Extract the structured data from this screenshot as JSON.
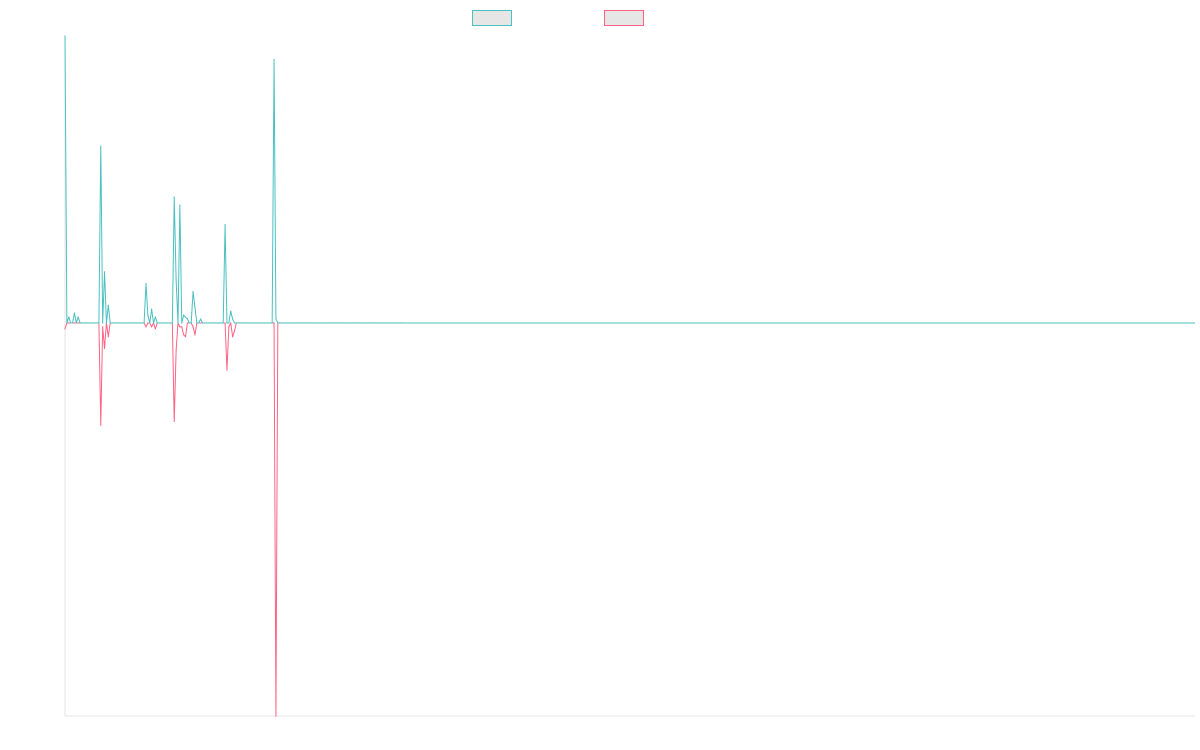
{
  "chart_data": {
    "type": "line",
    "title": "",
    "xlabel": "",
    "ylabel": "",
    "grid": false,
    "legend_position": "top",
    "ylim": [
      -100,
      73
    ],
    "x_count": 180,
    "series": [
      {
        "name": "",
        "color": "#4bc0c0",
        "values": [
          73,
          0,
          1.5,
          0,
          0,
          2.5,
          0,
          1.5,
          0,
          0,
          0,
          0,
          0,
          0,
          0,
          0,
          0,
          0,
          0,
          45,
          0,
          13,
          0,
          4.5,
          0,
          0,
          0,
          0,
          0,
          0,
          0,
          0,
          0,
          0,
          0,
          0,
          0,
          0,
          0,
          0,
          0,
          0,
          0,
          10,
          2,
          0,
          3.5,
          0,
          1.5,
          0,
          0,
          0,
          0,
          0,
          0,
          0,
          0,
          0,
          32,
          11,
          0,
          30,
          0,
          2,
          1.5,
          1,
          0,
          0,
          8,
          4,
          0,
          0,
          1,
          0,
          0,
          0,
          0,
          0,
          0,
          0,
          0,
          0,
          0,
          0,
          0,
          25,
          0,
          0,
          3,
          1,
          0,
          0,
          0,
          0,
          0,
          0,
          0,
          0,
          0,
          0,
          0,
          0,
          0,
          0,
          0,
          0,
          0,
          0,
          0,
          0,
          0,
          67,
          1,
          0,
          0,
          0,
          0,
          0,
          0,
          0,
          0,
          0,
          0,
          0,
          0,
          0,
          0,
          0,
          0,
          0,
          0,
          0,
          0,
          0,
          0,
          0,
          0,
          0,
          0,
          0,
          0,
          0,
          0,
          0,
          0,
          0,
          0,
          0,
          0,
          0,
          0,
          0,
          0,
          0,
          0,
          0,
          0,
          0,
          0,
          0,
          0,
          0,
          0,
          0,
          0,
          0,
          0,
          0,
          0,
          0,
          0,
          0,
          0,
          0,
          0,
          0,
          0,
          0,
          0,
          0,
          0,
          0,
          0,
          0,
          0,
          0,
          0
        ]
      },
      {
        "name": "",
        "color": "#ff6384",
        "values": [
          -1.5,
          0,
          0,
          0,
          0,
          0,
          0,
          0,
          0,
          0,
          0,
          0,
          0,
          0,
          0,
          0,
          0,
          0,
          0,
          -26,
          -1,
          -6.5,
          0,
          -3.5,
          0,
          0,
          0,
          0,
          0,
          0,
          0,
          0,
          0,
          0,
          0,
          0,
          0,
          0,
          0,
          0,
          0,
          0,
          0,
          -1,
          0,
          0,
          -1,
          0,
          -1.5,
          0,
          0,
          0,
          0,
          0,
          0,
          0,
          0,
          0,
          -25,
          -7,
          0,
          -1,
          -1,
          -3,
          -3.5,
          0,
          0,
          0,
          -1,
          -3,
          0,
          0,
          0,
          0,
          0,
          0,
          0,
          0,
          0,
          0,
          0,
          0,
          0,
          0,
          0,
          0,
          -12,
          -1,
          0,
          -3.5,
          -2,
          0,
          0,
          0,
          0,
          0,
          0,
          0,
          0,
          0,
          0,
          0,
          0,
          0,
          0,
          0,
          0,
          0,
          0,
          0,
          0,
          0,
          -100,
          0,
          0,
          0,
          0,
          0,
          0,
          0,
          0,
          0,
          0,
          0,
          0,
          0,
          0,
          0,
          0,
          0,
          0,
          0,
          0,
          0,
          0,
          0,
          0,
          0,
          0,
          0,
          0,
          0,
          0,
          0,
          0,
          0,
          0,
          0,
          0,
          0,
          0,
          0,
          0,
          0,
          0,
          0,
          0,
          0,
          0,
          0,
          0,
          0,
          0,
          0,
          0,
          0,
          0,
          0,
          0,
          0,
          0,
          0,
          0,
          0,
          0,
          0,
          0,
          0,
          0,
          0,
          0,
          0,
          0,
          0,
          0,
          0,
          0,
          0
        ]
      }
    ]
  }
}
